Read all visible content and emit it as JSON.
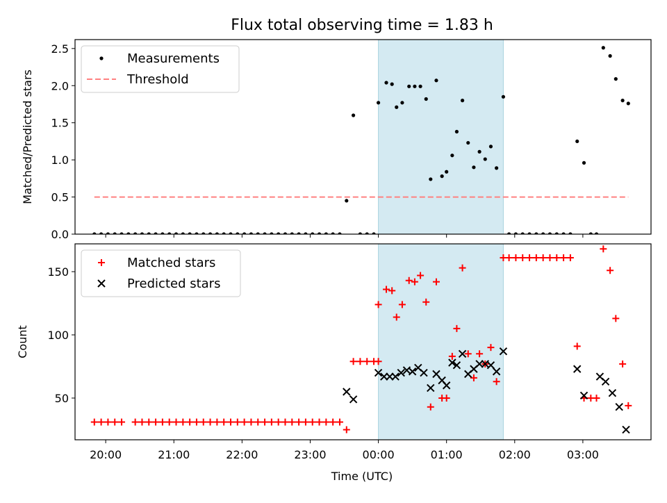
{
  "chart_data": [
    {
      "type": "scatter",
      "title": "Flux total observing time = 1.83 h",
      "xlabel": "",
      "ylabel": "Matched/Predicted stars",
      "ylim": [
        0,
        2.62
      ],
      "xlim": [
        "19:33",
        "04:00"
      ],
      "yticks": [
        "0.0",
        "0.5",
        "1.0",
        "1.5",
        "2.0",
        "2.5"
      ],
      "yticks_values": [
        0,
        0.5,
        1.0,
        1.5,
        2.0,
        2.5
      ],
      "legend": {
        "position": "top-left",
        "entries": [
          "Measurements",
          "Threshold"
        ]
      },
      "shaded_region": {
        "from": "00:00",
        "to": "01:50",
        "color": "#d4eaf2"
      },
      "series": [
        {
          "name": "Measurements",
          "marker": "dot",
          "color": "#000000",
          "points": [
            [
              "19:50",
              0
            ],
            [
              "19:56",
              0
            ],
            [
              "20:02",
              0
            ],
            [
              "20:08",
              0
            ],
            [
              "20:14",
              0
            ],
            [
              "20:20",
              0
            ],
            [
              "20:26",
              0
            ],
            [
              "20:32",
              0
            ],
            [
              "20:38",
              0
            ],
            [
              "20:44",
              0
            ],
            [
              "20:50",
              0
            ],
            [
              "20:56",
              0
            ],
            [
              "21:02",
              0
            ],
            [
              "21:08",
              0
            ],
            [
              "21:14",
              0
            ],
            [
              "21:20",
              0
            ],
            [
              "21:26",
              0
            ],
            [
              "21:32",
              0
            ],
            [
              "21:38",
              0
            ],
            [
              "21:44",
              0
            ],
            [
              "21:50",
              0
            ],
            [
              "21:56",
              0
            ],
            [
              "22:02",
              0
            ],
            [
              "22:08",
              0
            ],
            [
              "22:14",
              0
            ],
            [
              "22:20",
              0
            ],
            [
              "22:26",
              0
            ],
            [
              "22:32",
              0
            ],
            [
              "22:38",
              0
            ],
            [
              "22:44",
              0
            ],
            [
              "22:50",
              0
            ],
            [
              "22:56",
              0
            ],
            [
              "23:02",
              0
            ],
            [
              "23:08",
              0
            ],
            [
              "23:14",
              0
            ],
            [
              "23:20",
              0
            ],
            [
              "23:26",
              0
            ],
            [
              "23:32",
              0.45
            ],
            [
              "23:38",
              1.6
            ],
            [
              "23:44",
              0
            ],
            [
              "23:50",
              0
            ],
            [
              "23:56",
              0
            ],
            [
              "00:00",
              1.77
            ],
            [
              "00:07",
              2.04
            ],
            [
              "00:12",
              2.02
            ],
            [
              "00:16",
              1.71
            ],
            [
              "00:21",
              1.77
            ],
            [
              "00:27",
              1.99
            ],
            [
              "00:32",
              1.99
            ],
            [
              "00:37",
              1.99
            ],
            [
              "00:42",
              1.82
            ],
            [
              "00:46",
              0.74
            ],
            [
              "00:51",
              2.07
            ],
            [
              "00:56",
              0.78
            ],
            [
              "01:00",
              0.84
            ],
            [
              "01:05",
              1.06
            ],
            [
              "01:09",
              1.38
            ],
            [
              "01:14",
              1.8
            ],
            [
              "01:19",
              1.23
            ],
            [
              "01:24",
              0.9
            ],
            [
              "01:29",
              1.11
            ],
            [
              "01:34",
              1.01
            ],
            [
              "01:39",
              1.18
            ],
            [
              "01:44",
              0.89
            ],
            [
              "01:50",
              1.85
            ],
            [
              "01:55",
              0
            ],
            [
              "02:01",
              0
            ],
            [
              "02:07",
              0
            ],
            [
              "02:13",
              0
            ],
            [
              "02:19",
              0
            ],
            [
              "02:25",
              0
            ],
            [
              "02:31",
              0
            ],
            [
              "02:37",
              0
            ],
            [
              "02:43",
              0
            ],
            [
              "02:49",
              0
            ],
            [
              "02:55",
              1.25
            ],
            [
              "03:01",
              0.96
            ],
            [
              "03:07",
              0
            ],
            [
              "03:12",
              0
            ],
            [
              "03:18",
              2.51
            ],
            [
              "03:24",
              2.4
            ],
            [
              "03:29",
              2.09
            ],
            [
              "03:35",
              1.8
            ],
            [
              "03:40",
              1.76
            ]
          ]
        },
        {
          "name": "Threshold",
          "marker": "dashed-line",
          "color": "#ff8080",
          "points": [
            [
              "19:50",
              0.5
            ],
            [
              "03:40",
              0.5
            ]
          ]
        }
      ]
    },
    {
      "type": "scatter",
      "title": "",
      "xlabel": "Time (UTC)",
      "ylabel": "Count",
      "ylim": [
        17,
        172
      ],
      "xlim": [
        "19:33",
        "04:00"
      ],
      "yticks": [
        "50",
        "100",
        "150"
      ],
      "yticks_values": [
        50,
        100,
        150
      ],
      "xticks": [
        "20:00",
        "21:00",
        "22:00",
        "23:00",
        "00:00",
        "01:00",
        "02:00",
        "03:00"
      ],
      "legend": {
        "position": "top-left",
        "entries": [
          "Matched stars",
          "Predicted stars"
        ]
      },
      "shaded_region": {
        "from": "00:00",
        "to": "01:50",
        "color": "#d4eaf2"
      },
      "series": [
        {
          "name": "Matched stars",
          "marker": "plus",
          "color": "#ff0000",
          "points": [
            [
              "19:50",
              31
            ],
            [
              "19:56",
              31
            ],
            [
              "20:02",
              31
            ],
            [
              "20:08",
              31
            ],
            [
              "20:14",
              31
            ],
            [
              "20:26",
              31
            ],
            [
              "20:32",
              31
            ],
            [
              "20:38",
              31
            ],
            [
              "20:44",
              31
            ],
            [
              "20:50",
              31
            ],
            [
              "20:56",
              31
            ],
            [
              "21:02",
              31
            ],
            [
              "21:08",
              31
            ],
            [
              "21:14",
              31
            ],
            [
              "21:20",
              31
            ],
            [
              "21:26",
              31
            ],
            [
              "21:32",
              31
            ],
            [
              "21:38",
              31
            ],
            [
              "21:44",
              31
            ],
            [
              "21:50",
              31
            ],
            [
              "21:56",
              31
            ],
            [
              "22:02",
              31
            ],
            [
              "22:08",
              31
            ],
            [
              "22:14",
              31
            ],
            [
              "22:20",
              31
            ],
            [
              "22:26",
              31
            ],
            [
              "22:32",
              31
            ],
            [
              "22:38",
              31
            ],
            [
              "22:44",
              31
            ],
            [
              "22:50",
              31
            ],
            [
              "22:56",
              31
            ],
            [
              "23:02",
              31
            ],
            [
              "23:08",
              31
            ],
            [
              "23:14",
              31
            ],
            [
              "23:20",
              31
            ],
            [
              "23:26",
              31
            ],
            [
              "23:32",
              25
            ],
            [
              "23:38",
              79
            ],
            [
              "23:44",
              79
            ],
            [
              "23:50",
              79
            ],
            [
              "23:56",
              79
            ],
            [
              "00:00",
              79
            ],
            [
              "00:00",
              124
            ],
            [
              "00:07",
              136
            ],
            [
              "00:12",
              135
            ],
            [
              "00:16",
              114
            ],
            [
              "00:21",
              124
            ],
            [
              "00:27",
              143
            ],
            [
              "00:32",
              142
            ],
            [
              "00:37",
              147
            ],
            [
              "00:42",
              126
            ],
            [
              "00:46",
              43
            ],
            [
              "00:51",
              142
            ],
            [
              "00:56",
              50
            ],
            [
              "01:00",
              50
            ],
            [
              "01:05",
              83
            ],
            [
              "01:09",
              105
            ],
            [
              "01:14",
              153
            ],
            [
              "01:19",
              85
            ],
            [
              "01:24",
              66
            ],
            [
              "01:29",
              85
            ],
            [
              "01:34",
              77
            ],
            [
              "01:39",
              90
            ],
            [
              "01:44",
              63
            ],
            [
              "01:50",
              161
            ],
            [
              "01:55",
              161
            ],
            [
              "02:01",
              161
            ],
            [
              "02:07",
              161
            ],
            [
              "02:13",
              161
            ],
            [
              "02:19",
              161
            ],
            [
              "02:25",
              161
            ],
            [
              "02:31",
              161
            ],
            [
              "02:37",
              161
            ],
            [
              "02:43",
              161
            ],
            [
              "02:49",
              161
            ],
            [
              "02:55",
              91
            ],
            [
              "03:01",
              50
            ],
            [
              "03:07",
              50
            ],
            [
              "03:12",
              50
            ],
            [
              "03:18",
              168
            ],
            [
              "03:24",
              151
            ],
            [
              "03:29",
              113
            ],
            [
              "03:35",
              77
            ],
            [
              "03:40",
              44
            ]
          ]
        },
        {
          "name": "Predicted stars",
          "marker": "x",
          "color": "#000000",
          "points": [
            [
              "23:32",
              55
            ],
            [
              "23:38",
              49
            ],
            [
              "00:00",
              70
            ],
            [
              "00:05",
              67
            ],
            [
              "00:10",
              67
            ],
            [
              "00:15",
              67
            ],
            [
              "00:20",
              70
            ],
            [
              "00:25",
              72
            ],
            [
              "00:30",
              71
            ],
            [
              "00:35",
              74
            ],
            [
              "00:40",
              70
            ],
            [
              "00:46",
              58
            ],
            [
              "00:51",
              69
            ],
            [
              "00:56",
              64
            ],
            [
              "01:00",
              60
            ],
            [
              "01:05",
              78
            ],
            [
              "01:09",
              76
            ],
            [
              "01:14",
              85
            ],
            [
              "01:19",
              69
            ],
            [
              "01:24",
              73
            ],
            [
              "01:29",
              77
            ],
            [
              "01:34",
              77
            ],
            [
              "01:39",
              76
            ],
            [
              "01:44",
              71
            ],
            [
              "01:50",
              87
            ],
            [
              "02:55",
              73
            ],
            [
              "03:01",
              52
            ],
            [
              "03:15",
              67
            ],
            [
              "03:20",
              63
            ],
            [
              "03:26",
              54
            ],
            [
              "03:32",
              43
            ],
            [
              "03:38",
              25
            ]
          ]
        }
      ]
    }
  ]
}
